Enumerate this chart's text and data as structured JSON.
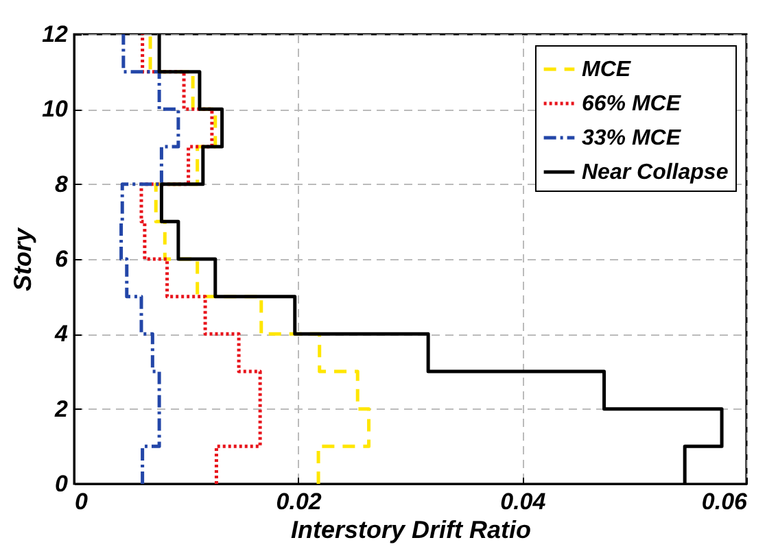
{
  "chart_data": {
    "type": "line",
    "xlabel": "Interstory Drift Ratio",
    "ylabel": "Story",
    "xlim": [
      0,
      0.06
    ],
    "xticks": [
      0,
      0.02,
      0.04,
      0.06
    ],
    "ylim": [
      0,
      12
    ],
    "yticks": [
      0,
      2,
      4,
      6,
      8,
      10,
      12
    ],
    "grid": true,
    "legend": "top right",
    "marker": "none",
    "series": [
      {
        "name": "MCE",
        "color": "#ffe600",
        "line_style": "dashed",
        "x": [
          0.0218,
          0.0218,
          0.0263,
          0.0263,
          0.0253,
          0.0253,
          0.0219,
          0.0219,
          0.0167,
          0.0167,
          0.011,
          0.011,
          0.0081,
          0.0081,
          0.0073,
          0.0073,
          0.011,
          0.011,
          0.0126,
          0.0126,
          0.0106,
          0.0106,
          0.0068,
          0.0068
        ],
        "values": [
          0,
          1,
          1,
          2,
          2,
          3,
          3,
          4,
          4,
          5,
          5,
          6,
          6,
          7,
          7,
          8,
          8,
          9,
          9,
          10,
          10,
          11,
          11,
          12
        ]
      },
      {
        "name": "66% MCE",
        "color": "#e8141c",
        "line_style": "dotted",
        "x": [
          0.0127,
          0.0127,
          0.0166,
          0.0166,
          0.0166,
          0.0166,
          0.0147,
          0.0147,
          0.0117,
          0.0117,
          0.0083,
          0.0083,
          0.0063,
          0.0063,
          0.006,
          0.006,
          0.0102,
          0.0102,
          0.0123,
          0.0123,
          0.0098,
          0.0098,
          0.0061,
          0.0061
        ],
        "values": [
          0,
          1,
          1,
          2,
          2,
          3,
          3,
          4,
          4,
          5,
          5,
          6,
          6,
          7,
          7,
          8,
          8,
          9,
          9,
          10,
          10,
          11,
          11,
          12
        ]
      },
      {
        "name": "33% MCE",
        "color": "#2346a8",
        "line_style": "dashdot",
        "x": [
          0.0061,
          0.0061,
          0.0076,
          0.0076,
          0.0076,
          0.0076,
          0.007,
          0.007,
          0.006,
          0.006,
          0.0047,
          0.0047,
          0.0042,
          0.0042,
          0.0043,
          0.0043,
          0.0078,
          0.0078,
          0.0093,
          0.0093,
          0.0076,
          0.0076,
          0.0044,
          0.0044
        ],
        "values": [
          0,
          1,
          1,
          2,
          2,
          3,
          3,
          4,
          4,
          5,
          5,
          6,
          6,
          7,
          7,
          8,
          8,
          9,
          9,
          10,
          10,
          11,
          11,
          12
        ]
      },
      {
        "name": "Near Collapse",
        "color": "#000000",
        "line_style": "solid",
        "x": [
          0.0545,
          0.0545,
          0.0578,
          0.0578,
          0.0473,
          0.0473,
          0.0316,
          0.0316,
          0.0197,
          0.0197,
          0.0126,
          0.0126,
          0.0093,
          0.0093,
          0.0078,
          0.0078,
          0.0115,
          0.0115,
          0.0132,
          0.0132,
          0.0112,
          0.0112,
          0.0076,
          0.0076
        ],
        "values": [
          0,
          1,
          1,
          2,
          2,
          3,
          3,
          4,
          4,
          5,
          5,
          6,
          6,
          7,
          7,
          8,
          8,
          9,
          9,
          10,
          10,
          11,
          11,
          12
        ]
      }
    ]
  }
}
